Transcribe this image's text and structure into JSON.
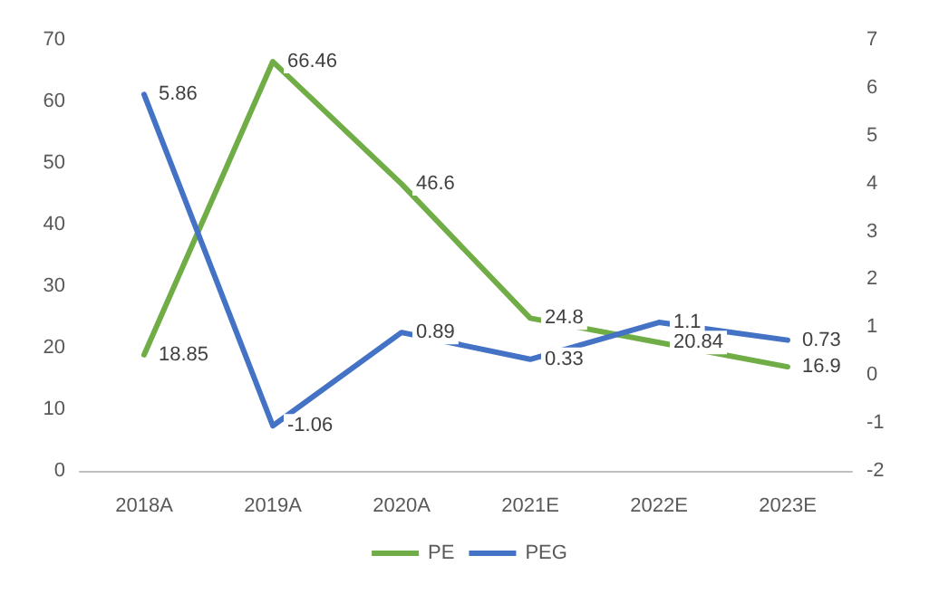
{
  "chart_data": {
    "type": "line",
    "categories": [
      "2018A",
      "2019A",
      "2020A",
      "2021E",
      "2022E",
      "2023E"
    ],
    "series": [
      {
        "name": "PE",
        "color": "#70ad47",
        "values": [
          18.85,
          66.46,
          46.6,
          24.8,
          20.84,
          16.9
        ]
      },
      {
        "name": "PEG",
        "color": "#4472c4",
        "axis": "y2",
        "values": [
          5.86,
          -1.06,
          0.89,
          0.33,
          1.1,
          0.73
        ]
      }
    ],
    "ylim": [
      0,
      70
    ],
    "yticks": [
      0,
      10,
      20,
      30,
      40,
      50,
      60,
      70
    ],
    "y2lim": [
      -2,
      7
    ],
    "y2ticks": [
      -2,
      -1,
      0,
      1,
      2,
      3,
      4,
      5,
      6,
      7
    ],
    "data_labels": true,
    "legend": "bottom",
    "grid": false,
    "marker": "none",
    "line_style": "solid"
  }
}
